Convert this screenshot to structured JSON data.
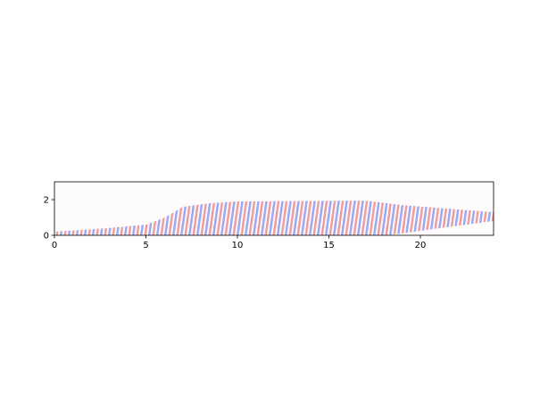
{
  "chart_data": {
    "type": "heatmap",
    "xlim": [
      0,
      24
    ],
    "ylim": [
      0,
      3
    ],
    "xticks": [
      0,
      5,
      10,
      15,
      20
    ],
    "yticks": [
      0,
      2
    ]
  }
}
